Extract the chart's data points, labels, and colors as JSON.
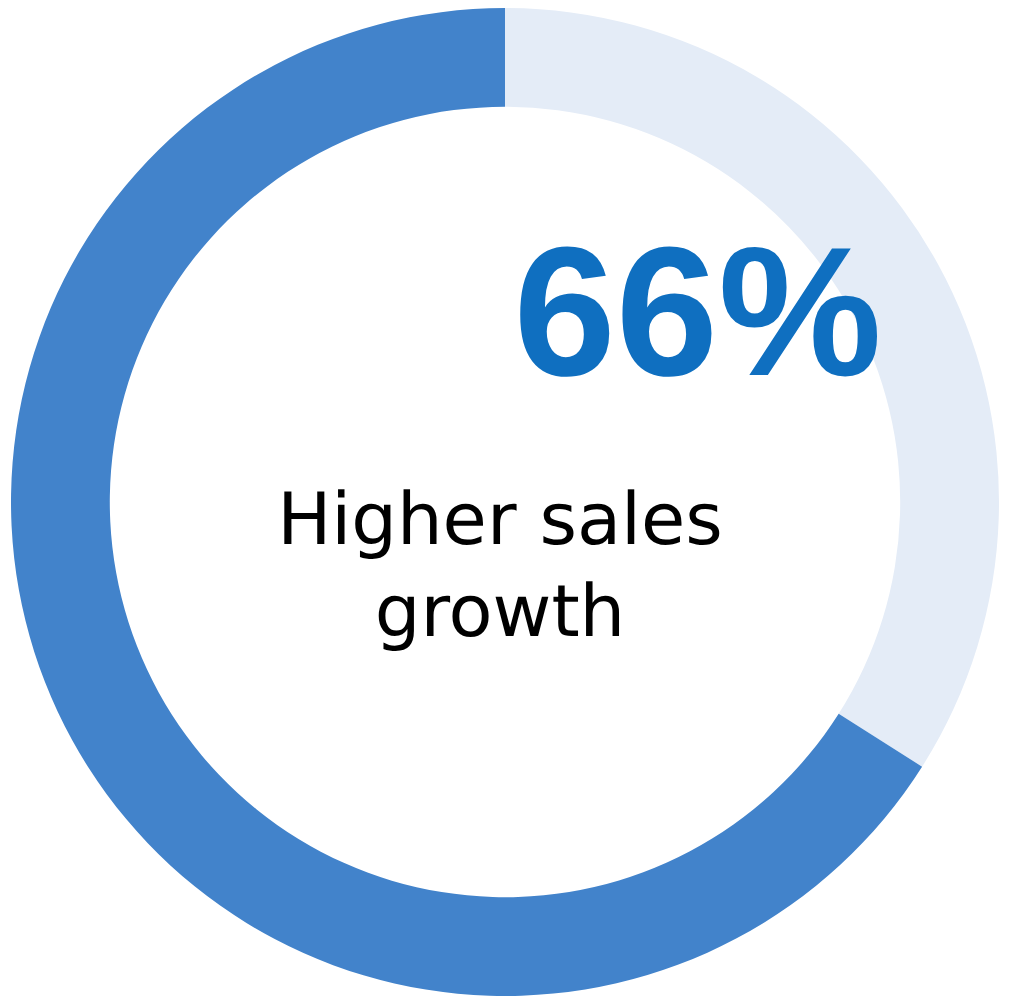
{
  "chart_data": {
    "type": "donut",
    "categories": [
      null,
      null
    ],
    "values": [
      34,
      66
    ],
    "colors": [
      "#e4ecf7",
      "#4283cb"
    ],
    "annotations": [
      "66%",
      "Higher sales growth"
    ]
  }
}
